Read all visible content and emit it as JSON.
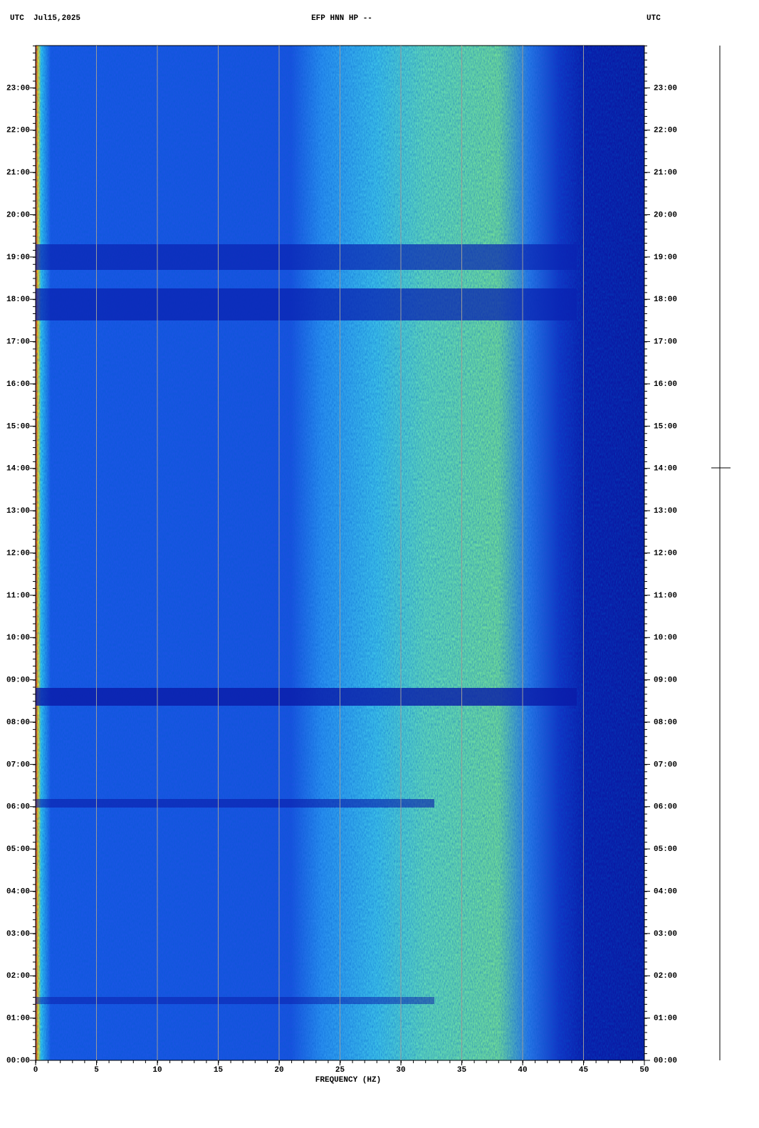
{
  "chart_data": {
    "type": "spectrogram",
    "header_left": "UTC  Jul15,2025",
    "title": "EFP HNN HP --",
    "header_right": "UTC",
    "xlabel": "FREQUENCY (HZ)",
    "xlim": [
      0,
      50
    ],
    "xticks": [
      0,
      5,
      10,
      15,
      20,
      25,
      30,
      35,
      40,
      45,
      50
    ],
    "ylim": [
      0,
      24
    ],
    "yticks": [
      {
        "value": 0,
        "label": "00:00"
      },
      {
        "value": 1,
        "label": "01:00"
      },
      {
        "value": 2,
        "label": "02:00"
      },
      {
        "value": 3,
        "label": "03:00"
      },
      {
        "value": 4,
        "label": "04:00"
      },
      {
        "value": 5,
        "label": "05:00"
      },
      {
        "value": 6,
        "label": "06:00"
      },
      {
        "value": 7,
        "label": "07:00"
      },
      {
        "value": 8,
        "label": "08:00"
      },
      {
        "value": 9,
        "label": "09:00"
      },
      {
        "value": 10,
        "label": "10:00"
      },
      {
        "value": 11,
        "label": "11:00"
      },
      {
        "value": 12,
        "label": "12:00"
      },
      {
        "value": 13,
        "label": "13:00"
      },
      {
        "value": 14,
        "label": "14:00"
      },
      {
        "value": 15,
        "label": "15:00"
      },
      {
        "value": 16,
        "label": "16:00"
      },
      {
        "value": 17,
        "label": "17:00"
      },
      {
        "value": 18,
        "label": "18:00"
      },
      {
        "value": 19,
        "label": "19:00"
      },
      {
        "value": 20,
        "label": "20:00"
      },
      {
        "value": 21,
        "label": "21:00"
      },
      {
        "value": 22,
        "label": "22:00"
      },
      {
        "value": 23,
        "label": "23:00"
      }
    ],
    "grid": true
  }
}
